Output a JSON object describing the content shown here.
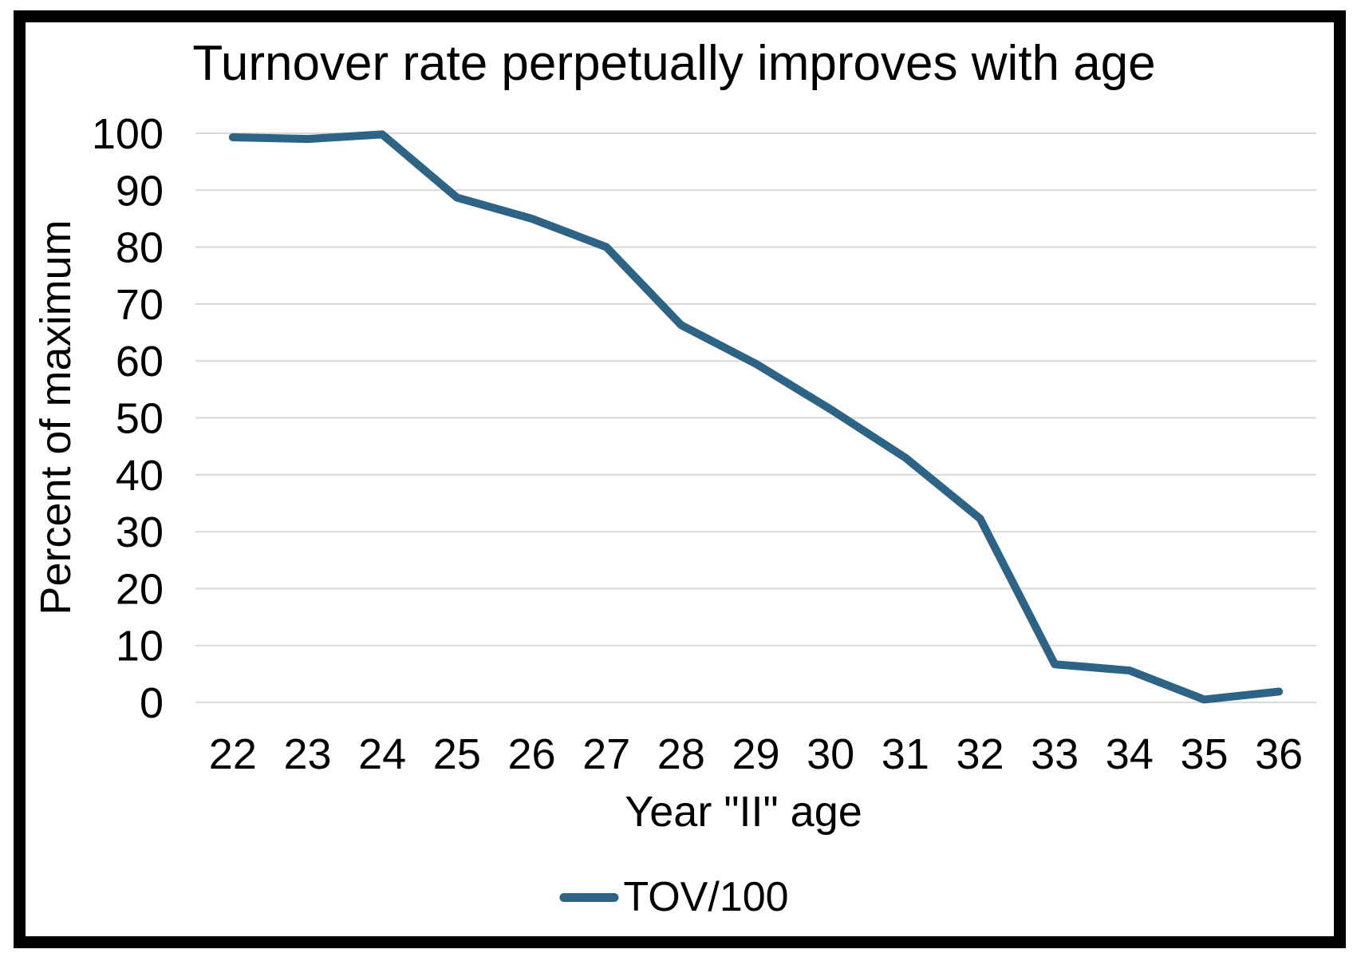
{
  "chart_data": {
    "type": "line",
    "title": "Turnover rate perpetually improves with age",
    "xlabel": "Year \"II\" age",
    "ylabel": "Percent of maximum",
    "categories": [
      22,
      23,
      24,
      25,
      26,
      27,
      28,
      29,
      30,
      31,
      32,
      33,
      34,
      35,
      36
    ],
    "series": [
      {
        "name": "TOV/100",
        "values": [
          99.3,
          99.0,
          99.8,
          88.7,
          85.0,
          80.0,
          66.3,
          59.5,
          51.5,
          43.0,
          32.3,
          6.7,
          5.6,
          0.5,
          1.9
        ]
      }
    ],
    "ylim": [
      0,
      100
    ],
    "ytick_step": 10,
    "grid": true,
    "legend_position": "bottom-center",
    "colors": {
      "line": "#2d6384",
      "gridline": "#d9d9d9",
      "text": "#000000",
      "frame": "#000000",
      "background": "#ffffff"
    }
  }
}
